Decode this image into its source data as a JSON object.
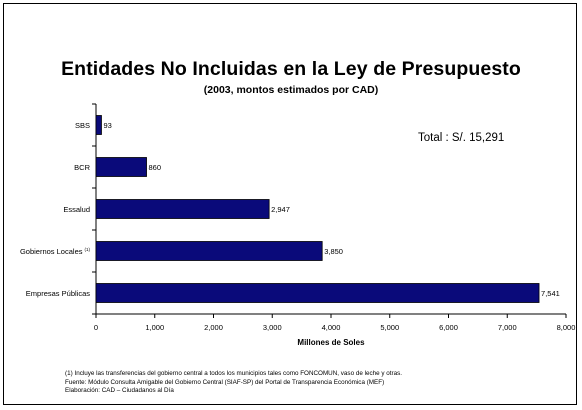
{
  "title": "Entidades No Incluidas en la Ley de Presupuesto",
  "subtitle_parts": {
    "pre": "(2003, ",
    "bold": "montos estimados por CAD)"
  },
  "total_label": "Total : S/. 15,291",
  "chart_data": {
    "type": "bar",
    "orientation": "horizontal",
    "title": "Entidades No Incluidas en la Ley de Presupuesto",
    "subtitle": "(2003, montos estimados por CAD)",
    "categories": [
      "SBS",
      "BCR",
      "Essalud",
      "Gobiernos Locales (1)",
      "Empresas Públicas"
    ],
    "category_labels": [
      {
        "text": "SBS",
        "sup": ""
      },
      {
        "text": "BCR",
        "sup": ""
      },
      {
        "text": "Essalud",
        "sup": ""
      },
      {
        "text": "Gobiernos Locales",
        "sup": "(1)"
      },
      {
        "text": "Empresas Públicas",
        "sup": ""
      }
    ],
    "values": [
      93,
      860,
      2947,
      3850,
      7541
    ],
    "value_labels": [
      "93",
      "860",
      "2,947",
      "3,850",
      "7,541"
    ],
    "xlabel": "Millones de Soles",
    "ylabel": "",
    "xlim": [
      0,
      8000
    ],
    "xticks": [
      0,
      1000,
      2000,
      3000,
      4000,
      5000,
      6000,
      7000,
      8000
    ],
    "xtick_labels": [
      "0",
      "1,000",
      "2,000",
      "3,000",
      "4,000",
      "5,000",
      "6,000",
      "7,000",
      "8,000"
    ],
    "bar_color": "#0a0a7a",
    "grid": false,
    "legend": false
  },
  "footnotes": [
    "(1) Incluye las transferencias del gobierno central a todos los municipios tales como FONCOMUN, vaso de leche y otras.",
    "Fuente: Módulo Consulta Amigable del Gobierno Central (SIAF-SP) del Portal de Transparencia Económica (MEF)",
    "Elaboración: CAD – Ciudadanos al Día"
  ]
}
